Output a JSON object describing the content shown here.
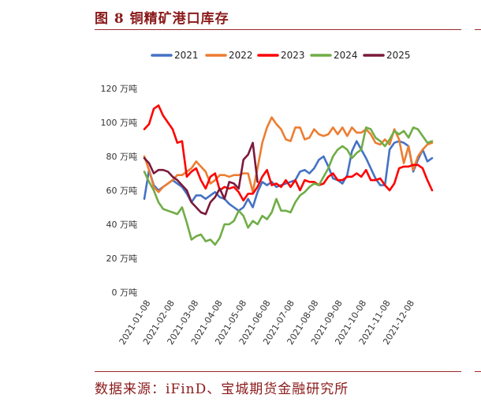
{
  "figure_title": "图 8  铜精矿港口库存",
  "source": "数据来源：iFinD、宝城期货金融研究所",
  "chart_data": {
    "type": "line",
    "title": "",
    "xlabel": "",
    "ylabel": "",
    "y_unit": "万吨",
    "ylim": [
      0,
      120
    ],
    "y_ticks": [
      {
        "value": 0,
        "label": "0 万吨"
      },
      {
        "value": 20,
        "label": "20 万吨"
      },
      {
        "value": 40,
        "label": "40 万吨"
      },
      {
        "value": 60,
        "label": "60 万吨"
      },
      {
        "value": 80,
        "label": "80 万吨"
      },
      {
        "value": 100,
        "label": "100 万吨"
      },
      {
        "value": 120,
        "label": "120 万吨"
      }
    ],
    "x_ticks": [
      "2021-01-08",
      "2021-02-08",
      "2021-03-08",
      "2021-04-08",
      "2021-05-08",
      "2021-06-08",
      "2021-07-08",
      "2021-08-08",
      "2021-09-08",
      "2021-10-08",
      "2021-11-08",
      "2021-12-08"
    ],
    "grid": false,
    "legend_position": "top",
    "series": [
      {
        "name": "2021",
        "color": "#4472c4",
        "values": [
          55,
          72,
          63,
          60,
          62,
          64,
          66,
          64,
          62,
          58,
          53,
          57,
          57,
          55,
          57,
          59,
          56,
          55,
          52,
          50,
          48,
          50,
          55,
          50,
          59,
          65,
          63,
          65,
          62,
          63,
          64,
          65,
          66,
          71,
          72,
          70,
          73,
          78,
          80,
          74,
          67,
          66,
          64,
          69,
          83,
          89,
          84,
          79,
          73,
          67,
          63,
          63,
          84,
          88,
          89,
          88,
          86,
          71,
          78,
          84,
          77,
          79
        ]
      },
      {
        "name": "2022",
        "color": "#ed7d31",
        "values": [
          80,
          72,
          62,
          59,
          62,
          64,
          66,
          69,
          69,
          71,
          73,
          77,
          74,
          71,
          64,
          66,
          69,
          69,
          68,
          69,
          69,
          70,
          70,
          59,
          73,
          88,
          97,
          103,
          99,
          96,
          90,
          89,
          97,
          97,
          90,
          91,
          96,
          93,
          92,
          93,
          97,
          93,
          97,
          92,
          97,
          94,
          94,
          96,
          93,
          88,
          87,
          90,
          87,
          96,
          90,
          76,
          86,
          72,
          80,
          84,
          87,
          88
        ]
      },
      {
        "name": "2023",
        "color": "#ff0000",
        "values": [
          96,
          99,
          108,
          110,
          104,
          100,
          96,
          88,
          89,
          68,
          71,
          73,
          66,
          61,
          68,
          70,
          60,
          62,
          61,
          62,
          59,
          54,
          58,
          58,
          62,
          68,
          72,
          63,
          64,
          62,
          66,
          62,
          66,
          60,
          66,
          65,
          65,
          63,
          64,
          68,
          70,
          66,
          66,
          68,
          68,
          70,
          68,
          72,
          66,
          66,
          67,
          63,
          60,
          64,
          73,
          74,
          74,
          75,
          75,
          73,
          66,
          60
        ]
      },
      {
        "name": "2024",
        "color": "#70ad47",
        "values": [
          71,
          65,
          60,
          53,
          49,
          48,
          47,
          46,
          50,
          41,
          31,
          33,
          34,
          30,
          31,
          28,
          32,
          40,
          40,
          42,
          48,
          45,
          38,
          42,
          40,
          45,
          43,
          47,
          55,
          48,
          48,
          47,
          53,
          57,
          59,
          62,
          64,
          63,
          68,
          73,
          80,
          84,
          86,
          84,
          79,
          82,
          84,
          97,
          96,
          91,
          89,
          86,
          90,
          95,
          93,
          95,
          91,
          97,
          96,
          92,
          88,
          89
        ]
      },
      {
        "name": "2025",
        "color": "#7b1a3a",
        "values": [
          79,
          76,
          70,
          72,
          72,
          71,
          68,
          66,
          63,
          60,
          53,
          50,
          47,
          46,
          53,
          56,
          61,
          55,
          65,
          64,
          61,
          78,
          81,
          88,
          65
        ]
      }
    ]
  }
}
